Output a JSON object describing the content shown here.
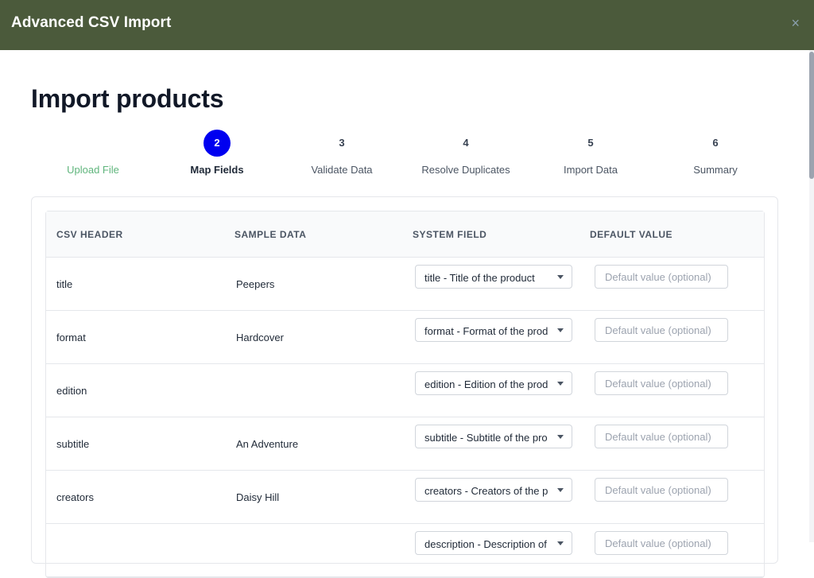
{
  "window": {
    "title": "Advanced CSV Import",
    "close_glyph": "×",
    "close_icon": "close-icon"
  },
  "page": {
    "title": "Import products"
  },
  "steps": [
    {
      "number": "",
      "label": "Upload File",
      "state": "done"
    },
    {
      "number": "2",
      "label": "Map Fields",
      "state": "current"
    },
    {
      "number": "3",
      "label": "Validate Data",
      "state": "pending"
    },
    {
      "number": "4",
      "label": "Resolve Duplicates",
      "state": "pending"
    },
    {
      "number": "5",
      "label": "Import Data",
      "state": "pending"
    },
    {
      "number": "6",
      "label": "Summary",
      "state": "pending"
    }
  ],
  "table": {
    "headers": {
      "csv_header": "CSV HEADER",
      "sample_data": "SAMPLE DATA",
      "system_field": "SYSTEM FIELD",
      "default_value": "DEFAULT VALUE"
    },
    "default_placeholder": "Default value (optional)",
    "rows": [
      {
        "csv_header": "title",
        "sample": "Peepers",
        "system_field": "title - Title of the product"
      },
      {
        "csv_header": "format",
        "sample": "Hardcover",
        "system_field": "format - Format of the product"
      },
      {
        "csv_header": "edition",
        "sample": "",
        "system_field": "edition - Edition of the product"
      },
      {
        "csv_header": "subtitle",
        "sample": "An Adventure",
        "system_field": "subtitle - Subtitle of the product"
      },
      {
        "csv_header": "creators",
        "sample": "Daisy Hill",
        "system_field": "creators - Creators of the product"
      },
      {
        "csv_header": "",
        "sample": "",
        "system_field": "description - Description of the product"
      }
    ]
  },
  "colors": {
    "titlebar": "#4b5a3b",
    "active_step": "#0000f0",
    "done_step": "#5fb57c"
  }
}
